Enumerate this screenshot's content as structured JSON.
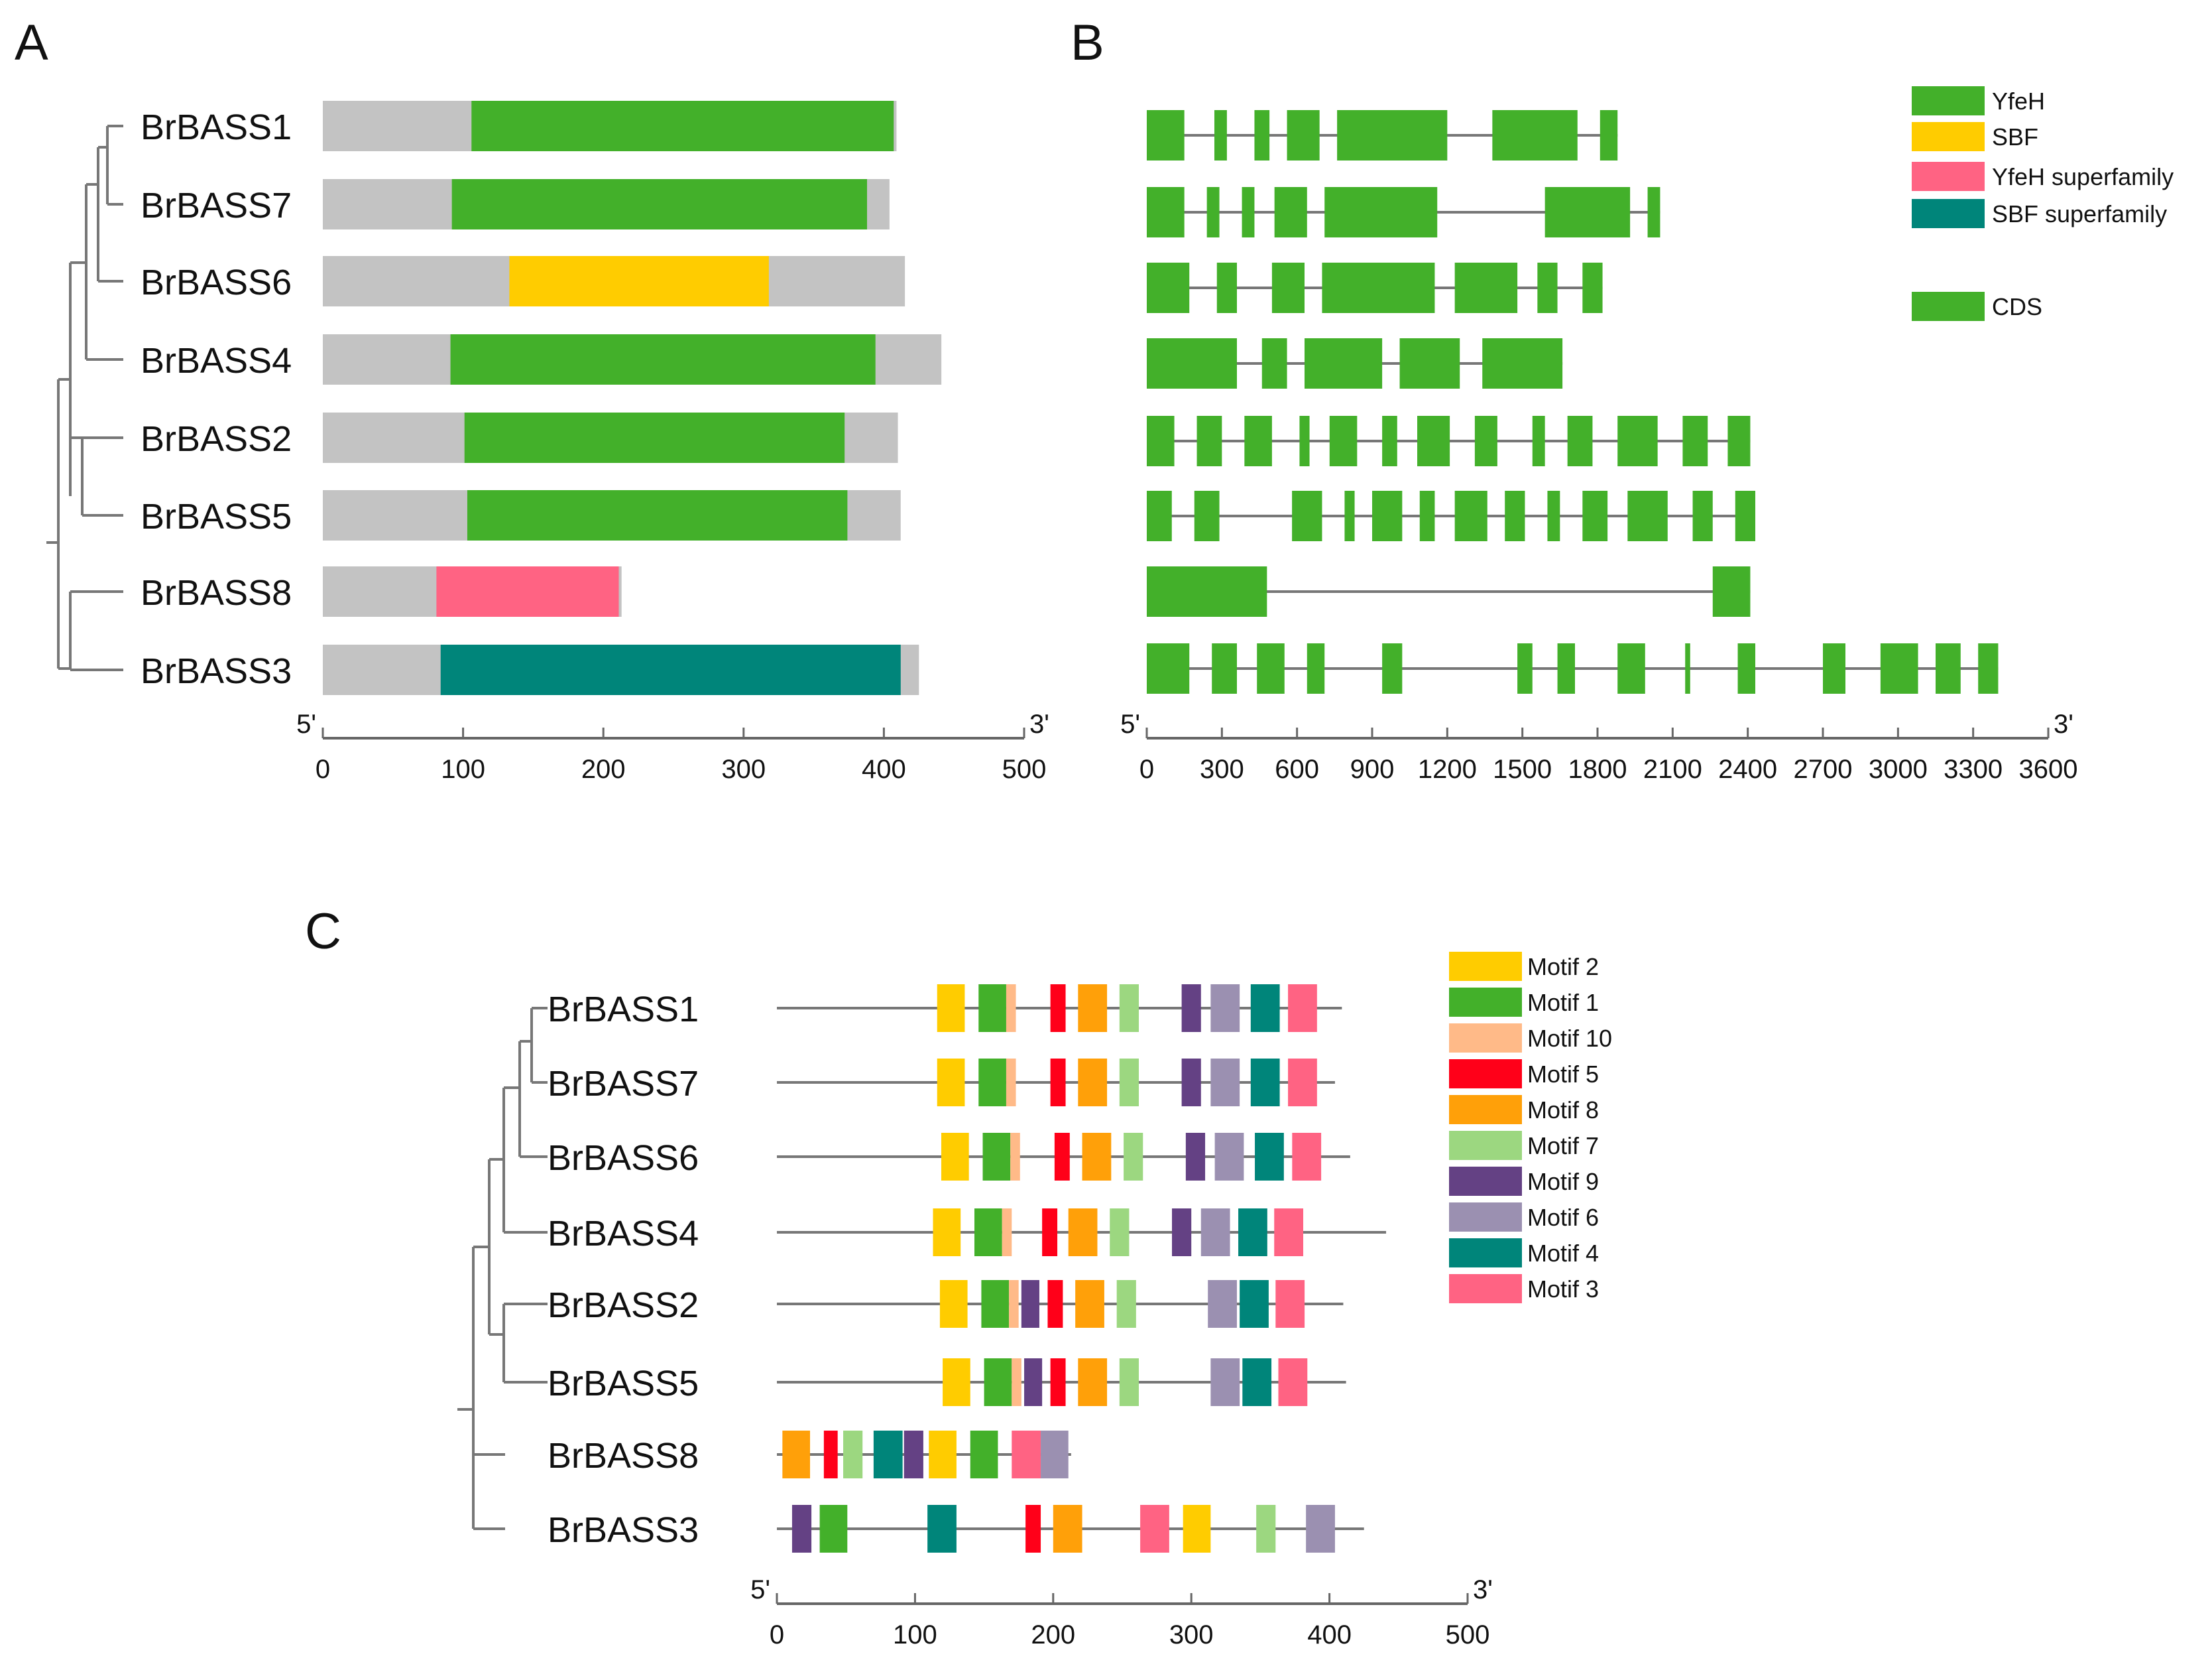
{
  "colors": {
    "gray": "#c3c3c3",
    "line": "#777777",
    "axis": "#666666",
    "text": "#111111",
    "YfeH": "#43b02a",
    "SBF": "#ffcc00",
    "YfeH superfamily": "#ff6383",
    "SBF superfamily": "#00857a",
    "CDS": "#43b02a",
    "Motif 2": "#ffcc00",
    "Motif 1": "#43b02a",
    "Motif 10": "#ffba88",
    "Motif 5": "#ff0019",
    "Motif 8": "#ffa009",
    "Motif 7": "#9cd780",
    "Motif 9": "#644184",
    "Motif 6": "#9b90b1",
    "Motif 4": "#00857a",
    "Motif 3": "#ff6383"
  },
  "panels": {
    "A": {
      "label": "A",
      "genes": [
        "BrBASS1",
        "BrBASS7",
        "BrBASS6",
        "BrBASS4",
        "BrBASS2",
        "BrBASS5",
        "BrBASS8",
        "BrBASS3"
      ],
      "proteins": [
        {
          "gene": "BrBASS1",
          "length": 409,
          "domain": {
            "type": "YfeH",
            "start": 106,
            "end": 407
          }
        },
        {
          "gene": "BrBASS7",
          "length": 404,
          "domain": {
            "type": "YfeH",
            "start": 92,
            "end": 388
          }
        },
        {
          "gene": "BrBASS6",
          "length": 415,
          "domain": {
            "type": "SBF",
            "start": 133,
            "end": 318
          }
        },
        {
          "gene": "BrBASS4",
          "length": 441,
          "domain": {
            "type": "YfeH",
            "start": 91,
            "end": 394
          }
        },
        {
          "gene": "BrBASS2",
          "length": 410,
          "domain": {
            "type": "YfeH",
            "start": 101,
            "end": 372
          }
        },
        {
          "gene": "BrBASS5",
          "length": 412,
          "domain": {
            "type": "YfeH",
            "start": 103,
            "end": 374
          }
        },
        {
          "gene": "BrBASS8",
          "length": 213,
          "domain": {
            "type": "YfeH superfamily",
            "start": 81,
            "end": 211
          }
        },
        {
          "gene": "BrBASS3",
          "length": 425,
          "domain": {
            "type": "SBF superfamily",
            "start": 84,
            "end": 412
          }
        }
      ],
      "axis": {
        "min": 0,
        "max": 500,
        "ticks": [
          0,
          100,
          200,
          300,
          400,
          500
        ],
        "start_label": "5'",
        "end_label": "3'"
      }
    },
    "B": {
      "label": "B",
      "legend": [
        "YfeH",
        "SBF",
        "YfeH superfamily",
        "SBF superfamily",
        "CDS"
      ],
      "gene_structures": [
        {
          "gene": "BrBASS1",
          "length": 1880,
          "exons": [
            [
              0,
              150
            ],
            [
              270,
              320
            ],
            [
              430,
              490
            ],
            [
              560,
              690
            ],
            [
              760,
              1200
            ],
            [
              1380,
              1720
            ],
            [
              1810,
              1880
            ]
          ]
        },
        {
          "gene": "BrBASS7",
          "length": 2050,
          "exons": [
            [
              0,
              150
            ],
            [
              240,
              290
            ],
            [
              380,
              430
            ],
            [
              510,
              640
            ],
            [
              710,
              1160
            ],
            [
              1590,
              1930
            ],
            [
              2000,
              2050
            ]
          ]
        },
        {
          "gene": "BrBASS6",
          "length": 1820,
          "exons": [
            [
              0,
              170
            ],
            [
              280,
              360
            ],
            [
              500,
              630
            ],
            [
              700,
              1150
            ],
            [
              1230,
              1480
            ],
            [
              1560,
              1640
            ],
            [
              1740,
              1820
            ]
          ]
        },
        {
          "gene": "BrBASS4",
          "length": 1660,
          "exons": [
            [
              0,
              360
            ],
            [
              460,
              560
            ],
            [
              630,
              940
            ],
            [
              1010,
              1250
            ],
            [
              1340,
              1660
            ]
          ]
        },
        {
          "gene": "BrBASS2",
          "length": 2410,
          "exons": [
            [
              0,
              110
            ],
            [
              200,
              300
            ],
            [
              390,
              500
            ],
            [
              610,
              650
            ],
            [
              730,
              840
            ],
            [
              940,
              1000
            ],
            [
              1080,
              1210
            ],
            [
              1310,
              1400
            ],
            [
              1540,
              1590
            ],
            [
              1680,
              1780
            ],
            [
              1880,
              2040
            ],
            [
              2140,
              2240
            ],
            [
              2320,
              2410
            ]
          ]
        },
        {
          "gene": "BrBASS5",
          "length": 2430,
          "exons": [
            [
              0,
              100
            ],
            [
              190,
              290
            ],
            [
              580,
              700
            ],
            [
              790,
              830
            ],
            [
              900,
              1020
            ],
            [
              1090,
              1150
            ],
            [
              1230,
              1360
            ],
            [
              1430,
              1510
            ],
            [
              1600,
              1650
            ],
            [
              1740,
              1840
            ],
            [
              1920,
              2080
            ],
            [
              2180,
              2260
            ],
            [
              2350,
              2430
            ]
          ]
        },
        {
          "gene": "BrBASS8",
          "length": 2410,
          "exons": [
            [
              0,
              480
            ],
            [
              2260,
              2410
            ]
          ]
        },
        {
          "gene": "BrBASS3",
          "length": 3400,
          "exons": [
            [
              0,
              170
            ],
            [
              260,
              360
            ],
            [
              440,
              550
            ],
            [
              640,
              710
            ],
            [
              940,
              1020
            ],
            [
              1480,
              1540
            ],
            [
              1640,
              1710
            ],
            [
              1880,
              1990
            ],
            [
              2150,
              2170
            ],
            [
              2360,
              2430
            ],
            [
              2700,
              2790
            ],
            [
              2930,
              3080
            ],
            [
              3150,
              3250
            ],
            [
              3320,
              3400
            ]
          ]
        }
      ],
      "axis": {
        "min": 0,
        "max": 3600,
        "ticks": [
          0,
          300,
          600,
          900,
          1200,
          1500,
          1800,
          2100,
          2400,
          2700,
          3000,
          3300,
          3600
        ],
        "start_label": "5'",
        "end_label": "3'"
      }
    },
    "C": {
      "label": "C",
      "legend": [
        "Motif 2",
        "Motif 1",
        "Motif 10",
        "Motif 5",
        "Motif 8",
        "Motif 7",
        "Motif 9",
        "Motif 6",
        "Motif 4",
        "Motif 3"
      ],
      "genes": [
        "BrBASS1",
        "BrBASS7",
        "BrBASS6",
        "BrBASS4",
        "BrBASS2",
        "BrBASS5",
        "BrBASS8",
        "BrBASS3"
      ],
      "motif_maps": [
        {
          "gene": "BrBASS1",
          "length": 409,
          "motifs": [
            [
              "Motif 2",
              116,
              136
            ],
            [
              "Motif 1",
              146,
              166
            ],
            [
              "Motif 10",
              166,
              173
            ],
            [
              "Motif 5",
              198,
              209
            ],
            [
              "Motif 8",
              218,
              239
            ],
            [
              "Motif 7",
              248,
              262
            ],
            [
              "Motif 9",
              293,
              307
            ],
            [
              "Motif 6",
              314,
              335
            ],
            [
              "Motif 4",
              343,
              364
            ],
            [
              "Motif 3",
              370,
              391
            ]
          ]
        },
        {
          "gene": "BrBASS7",
          "length": 404,
          "motifs": [
            [
              "Motif 2",
              116,
              136
            ],
            [
              "Motif 1",
              146,
              166
            ],
            [
              "Motif 10",
              166,
              173
            ],
            [
              "Motif 5",
              198,
              209
            ],
            [
              "Motif 8",
              218,
              239
            ],
            [
              "Motif 7",
              248,
              262
            ],
            [
              "Motif 9",
              293,
              307
            ],
            [
              "Motif 6",
              314,
              335
            ],
            [
              "Motif 4",
              343,
              364
            ],
            [
              "Motif 3",
              370,
              391
            ]
          ]
        },
        {
          "gene": "BrBASS6",
          "length": 415,
          "motifs": [
            [
              "Motif 2",
              119,
              139
            ],
            [
              "Motif 1",
              149,
              169
            ],
            [
              "Motif 10",
              169,
              176
            ],
            [
              "Motif 5",
              201,
              212
            ],
            [
              "Motif 8",
              221,
              242
            ],
            [
              "Motif 7",
              251,
              265
            ],
            [
              "Motif 9",
              296,
              310
            ],
            [
              "Motif 6",
              317,
              338
            ],
            [
              "Motif 4",
              346,
              367
            ],
            [
              "Motif 3",
              373,
              394
            ]
          ]
        },
        {
          "gene": "BrBASS4",
          "length": 441,
          "motifs": [
            [
              "Motif 2",
              113,
              133
            ],
            [
              "Motif 1",
              143,
              163
            ],
            [
              "Motif 10",
              163,
              170
            ],
            [
              "Motif 5",
              192,
              203
            ],
            [
              "Motif 8",
              211,
              232
            ],
            [
              "Motif 7",
              241,
              255
            ],
            [
              "Motif 9",
              286,
              300
            ],
            [
              "Motif 6",
              307,
              328
            ],
            [
              "Motif 4",
              334,
              355
            ],
            [
              "Motif 3",
              360,
              381
            ]
          ]
        },
        {
          "gene": "BrBASS2",
          "length": 410,
          "motifs": [
            [
              "Motif 2",
              118,
              138
            ],
            [
              "Motif 1",
              148,
              168
            ],
            [
              "Motif 10",
              168,
              175
            ],
            [
              "Motif 9",
              177,
              190
            ],
            [
              "Motif 5",
              196,
              207
            ],
            [
              "Motif 8",
              216,
              237
            ],
            [
              "Motif 7",
              246,
              260
            ],
            [
              "Motif 6",
              312,
              333
            ],
            [
              "Motif 4",
              335,
              356
            ],
            [
              "Motif 3",
              361,
              382
            ]
          ]
        },
        {
          "gene": "BrBASS5",
          "length": 412,
          "motifs": [
            [
              "Motif 2",
              120,
              140
            ],
            [
              "Motif 1",
              150,
              170
            ],
            [
              "Motif 10",
              170,
              177
            ],
            [
              "Motif 9",
              179,
              192
            ],
            [
              "Motif 5",
              198,
              209
            ],
            [
              "Motif 8",
              218,
              239
            ],
            [
              "Motif 7",
              248,
              262
            ],
            [
              "Motif 6",
              314,
              335
            ],
            [
              "Motif 4",
              337,
              358
            ],
            [
              "Motif 3",
              363,
              384
            ]
          ]
        },
        {
          "gene": "BrBASS8",
          "length": 213,
          "motifs": [
            [
              "Motif 8",
              4,
              24
            ],
            [
              "Motif 5",
              34,
              44
            ],
            [
              "Motif 7",
              48,
              62
            ],
            [
              "Motif 4",
              70,
              91
            ],
            [
              "Motif 9",
              92,
              106
            ],
            [
              "Motif 2",
              110,
              130
            ],
            [
              "Motif 1",
              140,
              160
            ],
            [
              "Motif 3",
              170,
              191
            ],
            [
              "Motif 6",
              191,
              211
            ]
          ]
        },
        {
          "gene": "BrBASS3",
          "length": 425,
          "motifs": [
            [
              "Motif 9",
              11,
              25
            ],
            [
              "Motif 1",
              31,
              51
            ],
            [
              "Motif 4",
              109,
              130
            ],
            [
              "Motif 5",
              180,
              191
            ],
            [
              "Motif 8",
              200,
              221
            ],
            [
              "Motif 3",
              263,
              284
            ],
            [
              "Motif 2",
              294,
              314
            ],
            [
              "Motif 7",
              347,
              361
            ],
            [
              "Motif 6",
              383,
              404
            ]
          ]
        }
      ],
      "axis": {
        "min": 0,
        "max": 500,
        "ticks": [
          0,
          100,
          200,
          300,
          400,
          500
        ],
        "start_label": "5'",
        "end_label": "3'"
      }
    }
  }
}
